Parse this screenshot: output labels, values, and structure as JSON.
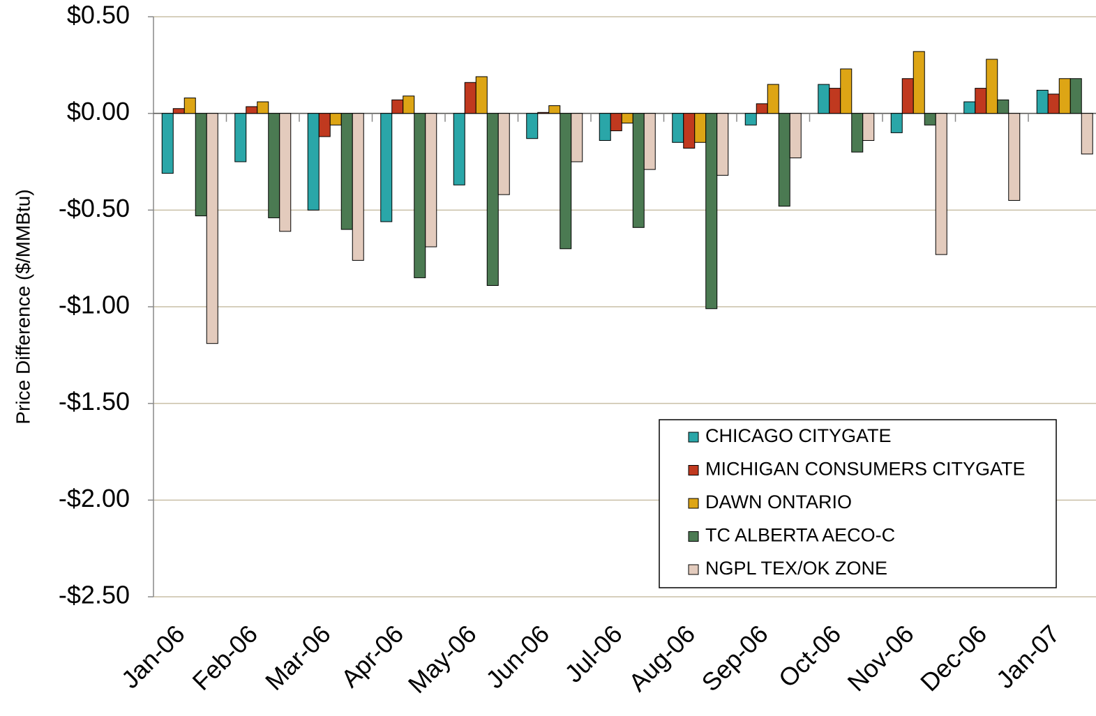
{
  "chart_data": {
    "type": "bar",
    "y_label": "Price Difference ($/MMBtu)",
    "categories": [
      "Jan-06",
      "Feb-06",
      "Mar-06",
      "Apr-06",
      "May-06",
      "Jun-06",
      "Jul-06",
      "Aug-06",
      "Sep-06",
      "Oct-06",
      "Nov-06",
      "Dec-06",
      "Jan-07"
    ],
    "series": [
      {
        "name": "CHICAGO CITYGATE",
        "color": "#2aa6a8",
        "values": [
          -0.31,
          -0.25,
          -0.5,
          -0.56,
          -0.37,
          -0.13,
          -0.14,
          -0.15,
          -0.06,
          0.15,
          -0.1,
          0.06,
          0.12
        ]
      },
      {
        "name": "MICHIGAN CONSUMERS CITYGATE",
        "color": "#c0391f",
        "values": [
          0.025,
          0.035,
          -0.12,
          0.07,
          0.16,
          0.005,
          -0.09,
          -0.18,
          0.05,
          0.13,
          0.18,
          0.13,
          0.1
        ]
      },
      {
        "name": "DAWN ONTARIO",
        "color": "#dda515",
        "values": [
          0.08,
          0.06,
          -0.06,
          0.09,
          0.19,
          0.04,
          -0.05,
          -0.15,
          0.15,
          0.23,
          0.32,
          0.28,
          0.18
        ]
      },
      {
        "name": "TC ALBERTA AECO-C",
        "color": "#4b7a52",
        "values": [
          -0.53,
          -0.54,
          -0.6,
          -0.85,
          -0.89,
          -0.7,
          -0.59,
          -1.01,
          -0.48,
          -0.2,
          -0.06,
          0.07,
          0.18
        ]
      },
      {
        "name": "NGPL TEX/OK ZONE",
        "color": "#e3cbbd",
        "values": [
          -1.19,
          -0.61,
          -0.76,
          -0.69,
          -0.42,
          -0.25,
          -0.29,
          -0.32,
          -0.23,
          -0.14,
          -0.73,
          -0.45,
          -0.21
        ]
      }
    ],
    "ylim": [
      -2.5,
      0.5
    ],
    "yticks": [
      {
        "value": 0.5,
        "label": "$0.50"
      },
      {
        "value": 0,
        "label": "$0.00"
      },
      {
        "value": -0.5,
        "label": "-$0.50"
      },
      {
        "value": -1,
        "label": "-$1.00"
      },
      {
        "value": -1.5,
        "label": "-$1.50"
      },
      {
        "value": -2,
        "label": "-$2.00"
      },
      {
        "value": -2.5,
        "label": "-$2.50"
      }
    ],
    "grid": true,
    "legend": "lower-right"
  }
}
